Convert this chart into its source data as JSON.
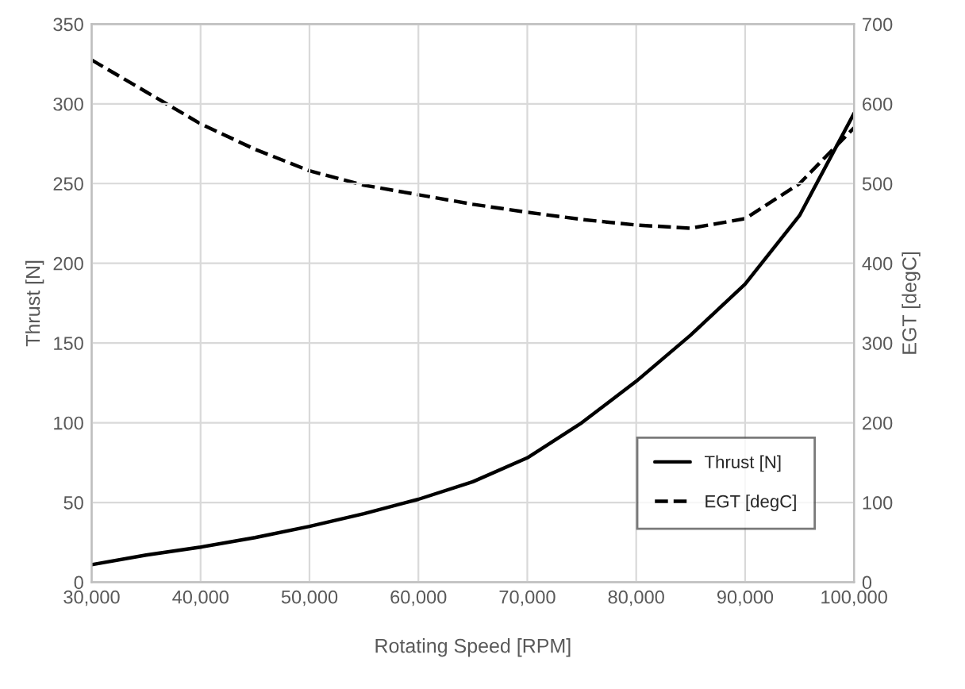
{
  "chart_data": {
    "type": "line",
    "xlabel": "Rotating Speed [RPM]",
    "ylabel": "Thrust [N]",
    "y2label": "EGT [degC]",
    "xlim": [
      30000,
      100000
    ],
    "xticks": [
      {
        "value": 30000,
        "label": "30,000"
      },
      {
        "value": 40000,
        "label": "40,000"
      },
      {
        "value": 50000,
        "label": "50,000"
      },
      {
        "value": 60000,
        "label": "60,000"
      },
      {
        "value": 70000,
        "label": "70,000"
      },
      {
        "value": 80000,
        "label": "80,000"
      },
      {
        "value": 90000,
        "label": "90,000"
      },
      {
        "value": 100000,
        "label": "100,000"
      }
    ],
    "ylim": [
      0,
      350
    ],
    "yticks": [
      0,
      50,
      100,
      150,
      200,
      250,
      300,
      350
    ],
    "y2lim": [
      0,
      700
    ],
    "y2ticks": [
      0,
      100,
      200,
      300,
      400,
      500,
      600,
      700
    ],
    "grid": true,
    "legend": "bottom right",
    "series": [
      {
        "name": "Thrust [N]",
        "color": "#000000",
        "line_style": "solid",
        "x": [
          30000,
          35000,
          40000,
          45000,
          50000,
          55000,
          60000,
          65000,
          70000,
          75000,
          80000,
          85000,
          90000,
          95000,
          100000
        ],
        "values": [
          11,
          17,
          22,
          28,
          35,
          43,
          52,
          63,
          78,
          100,
          126,
          155,
          187,
          230,
          294
        ]
      },
      {
        "name": "EGT [degC]",
        "color": "#000000",
        "line_style": "dashed",
        "axis": "y2",
        "x": [
          30000,
          35000,
          40000,
          45000,
          50000,
          55000,
          60000,
          65000,
          70000,
          75000,
          80000,
          85000,
          90000,
          95000,
          100000
        ],
        "values": [
          655,
          615,
          575,
          543,
          516,
          498,
          486,
          474,
          464,
          455,
          448,
          444,
          456,
          500,
          570
        ]
      }
    ]
  }
}
